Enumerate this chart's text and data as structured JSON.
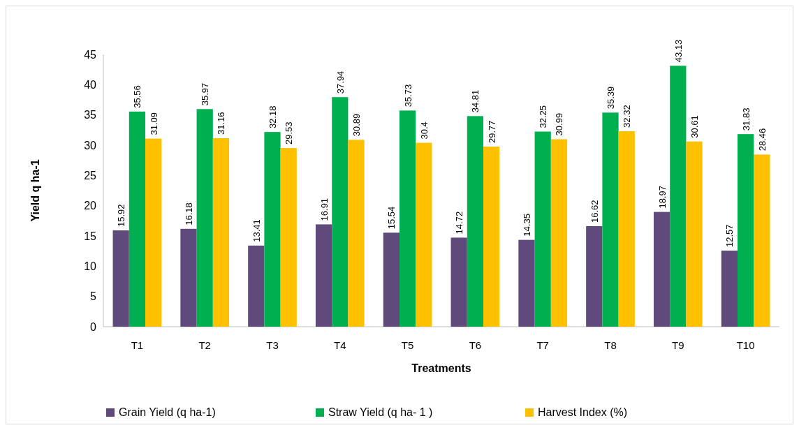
{
  "chart_data": {
    "type": "bar",
    "xlabel": "Treatments",
    "ylabel": "Yield q ha-1",
    "categories": [
      "T1",
      "T2",
      "T3",
      "T4",
      "T5",
      "T6",
      "T7",
      "T8",
      "T9",
      "T10"
    ],
    "series": [
      {
        "name": "Grain Yield (q ha-1)",
        "color": "#604a7b",
        "values": [
          15.92,
          16.18,
          13.41,
          16.91,
          15.54,
          14.72,
          14.35,
          16.62,
          18.97,
          12.57
        ]
      },
      {
        "name": "Straw Yield (q ha- 1 )",
        "color": "#00b050",
        "values": [
          35.56,
          35.97,
          32.18,
          37.94,
          35.73,
          34.81,
          32.25,
          35.39,
          43.13,
          31.83
        ]
      },
      {
        "name": "Harvest Index (%)",
        "color": "#ffc000",
        "values": [
          31.09,
          31.16,
          29.53,
          30.89,
          30.4,
          29.77,
          30.99,
          32.32,
          30.61,
          28.46
        ]
      }
    ],
    "ylim": [
      0,
      45
    ],
    "yticks": [
      0,
      5,
      10,
      15,
      20,
      25,
      30,
      35,
      40,
      45
    ],
    "grid": false,
    "legend": "bottom",
    "data_labels": true
  }
}
